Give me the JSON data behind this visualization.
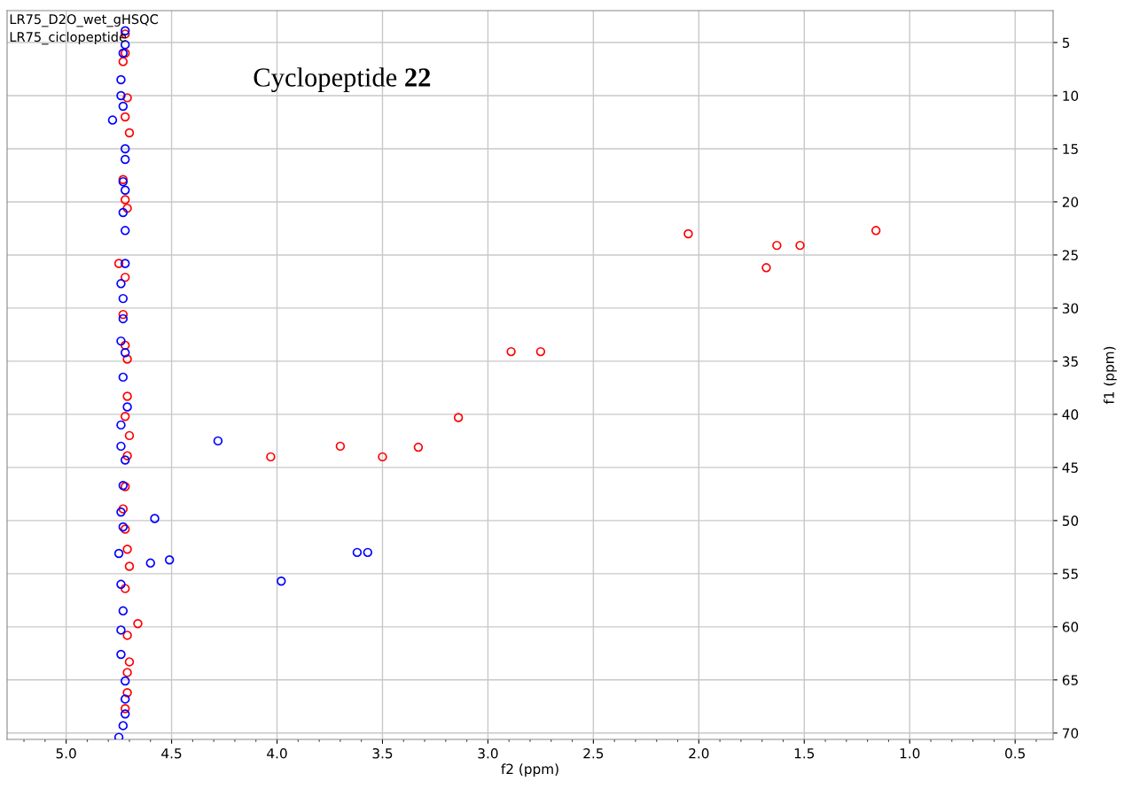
{
  "chart_data": {
    "type": "scatter",
    "title": "Cyclopeptide 22",
    "xlabel": "f2 (ppm)",
    "ylabel": "f1 (ppm)",
    "annotations": [
      "LR75_D2O_wet_gHSQC",
      "LR75_ciclopeptide"
    ],
    "series": [
      {
        "color": "#ff0000",
        "x": [
          2.05,
          1.16,
          1.63,
          1.52,
          1.68,
          2.89,
          2.75,
          3.14,
          3.7,
          3.33,
          4.03,
          3.5,
          4.72,
          4.72,
          4.73,
          4.71,
          4.72,
          4.7,
          4.73,
          4.72,
          4.71,
          4.75,
          4.72,
          4.73,
          4.72,
          4.71,
          4.71,
          4.72,
          4.7,
          4.71,
          4.72,
          4.73,
          4.72,
          4.71,
          4.7,
          4.72,
          4.66,
          4.71,
          4.7,
          4.71,
          4.71,
          4.72
        ],
        "values": [
          23.0,
          22.7,
          24.1,
          24.1,
          26.2,
          34.1,
          34.1,
          40.3,
          43.0,
          43.1,
          44.0,
          44.0,
          4.2,
          6.0,
          6.8,
          10.2,
          12.0,
          13.5,
          17.9,
          19.8,
          20.6,
          25.8,
          27.1,
          30.6,
          33.5,
          34.8,
          38.3,
          40.2,
          42.0,
          43.9,
          46.8,
          48.9,
          50.8,
          52.7,
          54.3,
          56.4,
          59.7,
          60.8,
          63.3,
          64.3,
          66.2,
          67.7
        ]
      },
      {
        "color": "#0000ff",
        "x": [
          4.28,
          4.58,
          3.62,
          3.57,
          3.98,
          4.51,
          4.6,
          4.72,
          4.72,
          4.73,
          4.74,
          4.74,
          4.73,
          4.78,
          4.72,
          4.72,
          4.73,
          4.72,
          4.73,
          4.72,
          4.72,
          4.74,
          4.73,
          4.73,
          4.74,
          4.72,
          4.73,
          4.71,
          4.74,
          4.74,
          4.72,
          4.73,
          4.74,
          4.73,
          4.75,
          4.74,
          4.73,
          4.74,
          4.74,
          4.72,
          4.72,
          4.72,
          4.73,
          4.75
        ],
        "values": [
          42.5,
          49.8,
          53.0,
          53.0,
          55.7,
          53.7,
          54.0,
          3.9,
          5.2,
          6.0,
          8.5,
          10.0,
          11.0,
          12.3,
          15.0,
          16.0,
          18.1,
          18.9,
          21.0,
          22.7,
          25.8,
          27.7,
          29.1,
          31.0,
          33.1,
          34.2,
          36.5,
          39.3,
          41.0,
          43.0,
          44.3,
          46.7,
          49.2,
          50.6,
          53.1,
          56.0,
          58.5,
          60.3,
          62.6,
          65.1,
          66.8,
          68.2,
          69.3,
          70.4
        ]
      }
    ],
    "xlim": [
      5.28,
      0.32
    ],
    "ylim": [
      70.6,
      2
    ],
    "xticks": [
      {
        "value": 5,
        "label": "5.0"
      },
      4.5,
      {
        "value": 4,
        "label": "4.0"
      },
      3.5,
      {
        "value": 3,
        "label": "3.0"
      },
      2.5,
      {
        "value": 2,
        "label": "2.0"
      },
      1.5,
      {
        "value": 1,
        "label": "1.0"
      },
      0.5
    ],
    "yticks": [
      5,
      10,
      15,
      20,
      25,
      30,
      35,
      40,
      45,
      50,
      55,
      60,
      65,
      70
    ],
    "grid": true,
    "marker": "circle",
    "legend": false
  }
}
